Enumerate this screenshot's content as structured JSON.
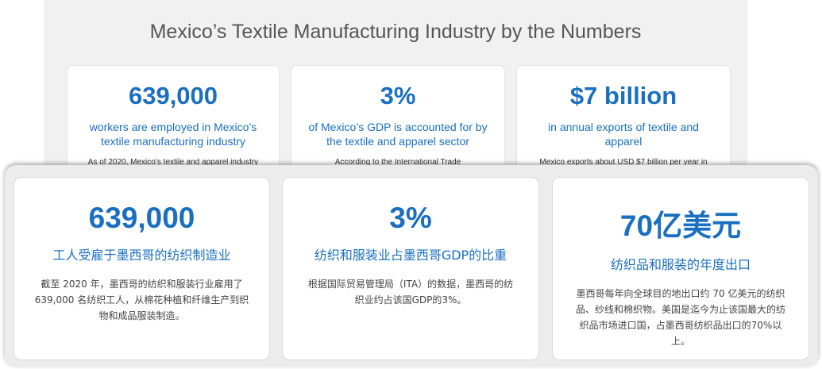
{
  "background": {
    "title": "Mexico’s Textile Manufacturing Industry by the Numbers",
    "cards": [
      {
        "number": "639,000",
        "description": "workers are employed in Mexico’s textile manufacturing industry",
        "note": "As of 2020, Mexico’s textile and apparel industry"
      },
      {
        "number": "3%",
        "description": "of Mexico’s GDP is accounted for by the textile and apparel sector",
        "note": "According to the International Trade"
      },
      {
        "number": "$7 billion",
        "description": "in annual exports of textile and apparel",
        "note": "Mexico exports about USD $7 billion per year in"
      }
    ]
  },
  "overlay": {
    "cards": [
      {
        "number": "639,000",
        "description": "工人受雇于墨西哥的纺织制造业",
        "note": "截至 2020 年，墨西哥的纺织和服装行业雇用了 639,000 名纺织工人，从棉花种植和纤维生产到织物和成品服装制造。"
      },
      {
        "number": "3%",
        "description": "纺织和服装业占墨西哥GDP的比重",
        "note": "根据国际贸易管理局（ITA）的数据，墨西哥的纺织业约占该国GDP的3%。"
      },
      {
        "number": "70亿美元",
        "description": "纺织品和服装的年度出口",
        "note": "墨西哥每年向全球目的地出口约 70 亿美元的纺织品、纱线和棉织物。美国是迄今为止该国最大的纺织品市场进口国，占墨西哥纺织品出口的70%以上。"
      }
    ]
  },
  "colors": {
    "accent": "#1a6fc1",
    "panel_bg": "#f1f1f1",
    "overlay_bg": "#ececec"
  }
}
